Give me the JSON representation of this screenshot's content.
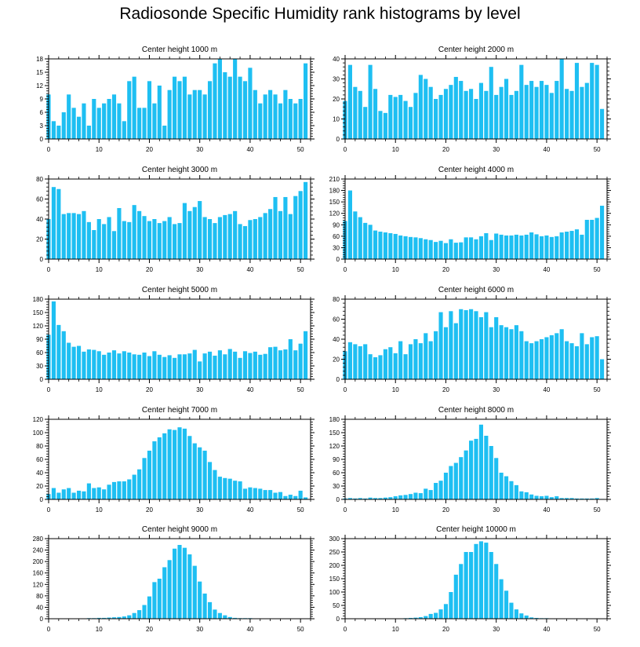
{
  "title": "Radiosonde Specific Humidity rank histograms by level",
  "colors": {
    "bar": "#1EBFF2",
    "axis": "#000000",
    "background": "#ffffff"
  },
  "chart_data": [
    {
      "type": "bar",
      "title": "Center height 1000 m",
      "xlim": [
        0,
        52
      ],
      "ylim": [
        0,
        18
      ],
      "xticks": [
        0,
        10,
        20,
        30,
        40,
        50
      ],
      "yticks": [
        0,
        3,
        6,
        9,
        12,
        15,
        18
      ],
      "bar_width": 0.8,
      "x": [
        0,
        1,
        2,
        3,
        4,
        5,
        6,
        7,
        8,
        9,
        10,
        11,
        12,
        13,
        14,
        15,
        16,
        17,
        18,
        19,
        20,
        21,
        22,
        23,
        24,
        25,
        26,
        27,
        28,
        29,
        30,
        31,
        32,
        33,
        34,
        35,
        36,
        37,
        38,
        39,
        40,
        41,
        42,
        43,
        44,
        45,
        46,
        47,
        48,
        49,
        50,
        51
      ],
      "values": [
        10,
        4,
        3,
        6,
        10,
        7,
        5,
        8,
        3,
        9,
        7,
        8,
        9,
        10,
        8,
        4,
        13,
        14,
        7,
        7,
        13,
        8,
        12,
        3,
        11,
        14,
        13,
        14,
        10,
        11,
        11,
        10,
        13,
        17,
        18,
        15,
        14,
        18,
        14,
        13,
        16,
        11,
        8,
        10,
        11,
        10,
        8,
        11,
        9,
        8,
        9,
        17
      ]
    },
    {
      "type": "bar",
      "title": "Center height 2000 m",
      "xlim": [
        0,
        52
      ],
      "ylim": [
        0,
        40
      ],
      "xticks": [
        0,
        10,
        20,
        30,
        40,
        50
      ],
      "yticks": [
        0,
        10,
        20,
        30,
        40
      ],
      "bar_width": 0.8,
      "x": [
        0,
        1,
        2,
        3,
        4,
        5,
        6,
        7,
        8,
        9,
        10,
        11,
        12,
        13,
        14,
        15,
        16,
        17,
        18,
        19,
        20,
        21,
        22,
        23,
        24,
        25,
        26,
        27,
        28,
        29,
        30,
        31,
        32,
        33,
        34,
        35,
        36,
        37,
        38,
        39,
        40,
        41,
        42,
        43,
        44,
        45,
        46,
        47,
        48,
        49,
        50,
        51
      ],
      "values": [
        19,
        37,
        26,
        24,
        16,
        37,
        25,
        14,
        13,
        22,
        21,
        22,
        19,
        16,
        23,
        32,
        30,
        26,
        20,
        22,
        25,
        27,
        31,
        29,
        24,
        25,
        20,
        28,
        24,
        36,
        22,
        26,
        30,
        22,
        24,
        37,
        27,
        29,
        26,
        29,
        27,
        23,
        29,
        40,
        25,
        24,
        38,
        26,
        28,
        38,
        37,
        15
      ]
    },
    {
      "type": "bar",
      "title": "Center height 3000 m",
      "xlim": [
        0,
        52
      ],
      "ylim": [
        0,
        80
      ],
      "xticks": [
        0,
        10,
        20,
        30,
        40,
        50
      ],
      "yticks": [
        0,
        20,
        40,
        60,
        80
      ],
      "bar_width": 0.8,
      "x": [
        0,
        1,
        2,
        3,
        4,
        5,
        6,
        7,
        8,
        9,
        10,
        11,
        12,
        13,
        14,
        15,
        16,
        17,
        18,
        19,
        20,
        21,
        22,
        23,
        24,
        25,
        26,
        27,
        28,
        29,
        30,
        31,
        32,
        33,
        34,
        35,
        36,
        37,
        38,
        39,
        40,
        41,
        42,
        43,
        44,
        45,
        46,
        47,
        48,
        49,
        50,
        51
      ],
      "values": [
        40,
        72,
        70,
        45,
        46,
        46,
        45,
        48,
        37,
        29,
        40,
        35,
        42,
        28,
        51,
        38,
        37,
        54,
        48,
        43,
        38,
        40,
        36,
        38,
        42,
        35,
        36,
        56,
        48,
        52,
        58,
        42,
        40,
        36,
        42,
        44,
        45,
        48,
        35,
        33,
        39,
        40,
        42,
        46,
        50,
        62,
        48,
        62,
        45,
        63,
        68,
        77
      ]
    },
    {
      "type": "bar",
      "title": "Center height 4000 m",
      "xlim": [
        0,
        52
      ],
      "ylim": [
        0,
        210
      ],
      "xticks": [
        0,
        10,
        20,
        30,
        40,
        50
      ],
      "yticks": [
        0,
        30,
        60,
        90,
        120,
        150,
        180,
        210
      ],
      "bar_width": 0.8,
      "x": [
        0,
        1,
        2,
        3,
        4,
        5,
        6,
        7,
        8,
        9,
        10,
        11,
        12,
        13,
        14,
        15,
        16,
        17,
        18,
        19,
        20,
        21,
        22,
        23,
        24,
        25,
        26,
        27,
        28,
        29,
        30,
        31,
        32,
        33,
        34,
        35,
        36,
        37,
        38,
        39,
        40,
        41,
        42,
        43,
        44,
        45,
        46,
        47,
        48,
        49,
        50,
        51
      ],
      "values": [
        100,
        180,
        125,
        110,
        95,
        90,
        75,
        72,
        70,
        68,
        66,
        62,
        60,
        58,
        57,
        55,
        52,
        50,
        45,
        48,
        42,
        52,
        43,
        44,
        57,
        57,
        52,
        60,
        68,
        50,
        67,
        64,
        62,
        62,
        64,
        62,
        64,
        70,
        65,
        60,
        62,
        58,
        60,
        70,
        72,
        74,
        78,
        64,
        103,
        103,
        108,
        140
      ]
    },
    {
      "type": "bar",
      "title": "Center height 5000 m",
      "xlim": [
        0,
        52
      ],
      "ylim": [
        0,
        180
      ],
      "xticks": [
        0,
        10,
        20,
        30,
        40,
        50
      ],
      "yticks": [
        0,
        30,
        60,
        90,
        120,
        150,
        180
      ],
      "bar_width": 0.8,
      "x": [
        0,
        1,
        2,
        3,
        4,
        5,
        6,
        7,
        8,
        9,
        10,
        11,
        12,
        13,
        14,
        15,
        16,
        17,
        18,
        19,
        20,
        21,
        22,
        23,
        24,
        25,
        26,
        27,
        28,
        29,
        30,
        31,
        32,
        33,
        34,
        35,
        36,
        37,
        38,
        39,
        40,
        41,
        42,
        43,
        44,
        45,
        46,
        47,
        48,
        49,
        50,
        51
      ],
      "values": [
        100,
        175,
        122,
        108,
        82,
        73,
        75,
        62,
        67,
        66,
        63,
        55,
        60,
        65,
        58,
        63,
        60,
        56,
        55,
        60,
        52,
        63,
        55,
        50,
        54,
        48,
        56,
        56,
        58,
        66,
        40,
        58,
        62,
        53,
        65,
        56,
        68,
        62,
        48,
        63,
        59,
        62,
        55,
        57,
        72,
        73,
        65,
        67,
        90,
        65,
        80,
        108
      ]
    },
    {
      "type": "bar",
      "title": "Center height 6000 m",
      "xlim": [
        0,
        52
      ],
      "ylim": [
        0,
        80
      ],
      "xticks": [
        0,
        10,
        20,
        30,
        40,
        50
      ],
      "yticks": [
        0,
        20,
        40,
        60,
        80
      ],
      "bar_width": 0.8,
      "x": [
        0,
        1,
        2,
        3,
        4,
        5,
        6,
        7,
        8,
        9,
        10,
        11,
        12,
        13,
        14,
        15,
        16,
        17,
        18,
        19,
        20,
        21,
        22,
        23,
        24,
        25,
        26,
        27,
        28,
        29,
        30,
        31,
        32,
        33,
        34,
        35,
        36,
        37,
        38,
        39,
        40,
        41,
        42,
        43,
        44,
        45,
        46,
        47,
        48,
        49,
        50,
        51
      ],
      "values": [
        28,
        37,
        35,
        33,
        35,
        25,
        22,
        24,
        30,
        32,
        26,
        38,
        25,
        35,
        40,
        36,
        46,
        38,
        48,
        67,
        52,
        68,
        56,
        70,
        69,
        70,
        68,
        62,
        67,
        52,
        62,
        54,
        52,
        50,
        54,
        48,
        38,
        36,
        38,
        40,
        42,
        44,
        46,
        50,
        38,
        36,
        33,
        46,
        35,
        42,
        43,
        20
      ]
    },
    {
      "type": "bar",
      "title": "Center height 7000 m",
      "xlim": [
        0,
        52
      ],
      "ylim": [
        0,
        120
      ],
      "xticks": [
        0,
        10,
        20,
        30,
        40,
        50
      ],
      "yticks": [
        0,
        20,
        40,
        60,
        80,
        100,
        120
      ],
      "bar_width": 0.8,
      "x": [
        0,
        1,
        2,
        3,
        4,
        5,
        6,
        7,
        8,
        9,
        10,
        11,
        12,
        13,
        14,
        15,
        16,
        17,
        18,
        19,
        20,
        21,
        22,
        23,
        24,
        25,
        26,
        27,
        28,
        29,
        30,
        31,
        32,
        33,
        34,
        35,
        36,
        37,
        38,
        39,
        40,
        41,
        42,
        43,
        44,
        45,
        46,
        47,
        48,
        49,
        50,
        51
      ],
      "values": [
        8,
        17,
        10,
        15,
        17,
        10,
        13,
        12,
        24,
        17,
        18,
        15,
        22,
        26,
        27,
        27,
        30,
        37,
        45,
        62,
        73,
        87,
        93,
        99,
        105,
        104,
        108,
        106,
        95,
        84,
        78,
        73,
        56,
        44,
        34,
        32,
        31,
        28,
        27,
        16,
        18,
        17,
        16,
        14,
        14,
        10,
        11,
        5,
        7,
        5,
        13,
        3
      ]
    },
    {
      "type": "bar",
      "title": "Center height 8000 m",
      "xlim": [
        0,
        52
      ],
      "ylim": [
        0,
        180
      ],
      "xticks": [
        0,
        10,
        20,
        30,
        40,
        50
      ],
      "yticks": [
        0,
        30,
        60,
        90,
        120,
        150,
        180
      ],
      "bar_width": 0.8,
      "x": [
        0,
        1,
        2,
        3,
        4,
        5,
        6,
        7,
        8,
        9,
        10,
        11,
        12,
        13,
        14,
        15,
        16,
        17,
        18,
        19,
        20,
        21,
        22,
        23,
        24,
        25,
        26,
        27,
        28,
        29,
        30,
        31,
        32,
        33,
        34,
        35,
        36,
        37,
        38,
        39,
        40,
        41,
        42,
        43,
        44,
        45,
        46,
        47,
        48,
        49,
        50,
        51
      ],
      "values": [
        2,
        3,
        2,
        3,
        2,
        4,
        3,
        3,
        4,
        5,
        7,
        9,
        10,
        12,
        15,
        14,
        24,
        21,
        37,
        42,
        60,
        75,
        82,
        95,
        110,
        132,
        136,
        168,
        143,
        120,
        93,
        60,
        52,
        41,
        32,
        18,
        16,
        11,
        8,
        7,
        8,
        5,
        7,
        3,
        3,
        3,
        2,
        2,
        2,
        2,
        3,
        1
      ]
    },
    {
      "type": "bar",
      "title": "Center height 9000 m",
      "xlim": [
        0,
        52
      ],
      "ylim": [
        0,
        280
      ],
      "xticks": [
        0,
        10,
        20,
        30,
        40,
        50
      ],
      "yticks": [
        0,
        40,
        80,
        120,
        160,
        200,
        240,
        280
      ],
      "bar_width": 0.8,
      "x": [
        0,
        1,
        2,
        3,
        4,
        5,
        6,
        7,
        8,
        9,
        10,
        11,
        12,
        13,
        14,
        15,
        16,
        17,
        18,
        19,
        20,
        21,
        22,
        23,
        24,
        25,
        26,
        27,
        28,
        29,
        30,
        31,
        32,
        33,
        34,
        35,
        36,
        37,
        38,
        39,
        40,
        41,
        42,
        43,
        44,
        45,
        46,
        47,
        48,
        49,
        50,
        51
      ],
      "values": [
        1,
        1,
        1,
        1,
        1,
        1,
        1,
        1,
        2,
        2,
        3,
        3,
        4,
        5,
        6,
        8,
        12,
        20,
        30,
        48,
        78,
        128,
        140,
        180,
        205,
        245,
        258,
        248,
        225,
        185,
        130,
        88,
        58,
        32,
        20,
        12,
        6,
        3,
        2,
        2,
        2,
        1,
        1,
        1,
        1,
        1,
        1,
        1,
        1,
        1,
        1,
        1
      ]
    },
    {
      "type": "bar",
      "title": "Center height 10000 m",
      "xlim": [
        0,
        52
      ],
      "ylim": [
        0,
        300
      ],
      "xticks": [
        0,
        10,
        20,
        30,
        40,
        50
      ],
      "yticks": [
        0,
        50,
        100,
        150,
        200,
        250,
        300
      ],
      "bar_width": 0.8,
      "x": [
        0,
        1,
        2,
        3,
        4,
        5,
        6,
        7,
        8,
        9,
        10,
        11,
        12,
        13,
        14,
        15,
        16,
        17,
        18,
        19,
        20,
        21,
        22,
        23,
        24,
        25,
        26,
        27,
        28,
        29,
        30,
        31,
        32,
        33,
        34,
        35,
        36,
        37,
        38,
        39,
        40,
        41,
        42,
        43,
        44,
        45,
        46,
        47,
        48,
        49,
        50,
        51
      ],
      "values": [
        1,
        1,
        1,
        1,
        1,
        1,
        1,
        1,
        1,
        1,
        1,
        1,
        2,
        3,
        4,
        6,
        10,
        18,
        22,
        35,
        55,
        100,
        165,
        205,
        250,
        250,
        280,
        290,
        285,
        250,
        205,
        148,
        105,
        60,
        35,
        20,
        12,
        5,
        3,
        2,
        2,
        1,
        1,
        1,
        1,
        1,
        1,
        1,
        1,
        1,
        1,
        1
      ]
    }
  ]
}
